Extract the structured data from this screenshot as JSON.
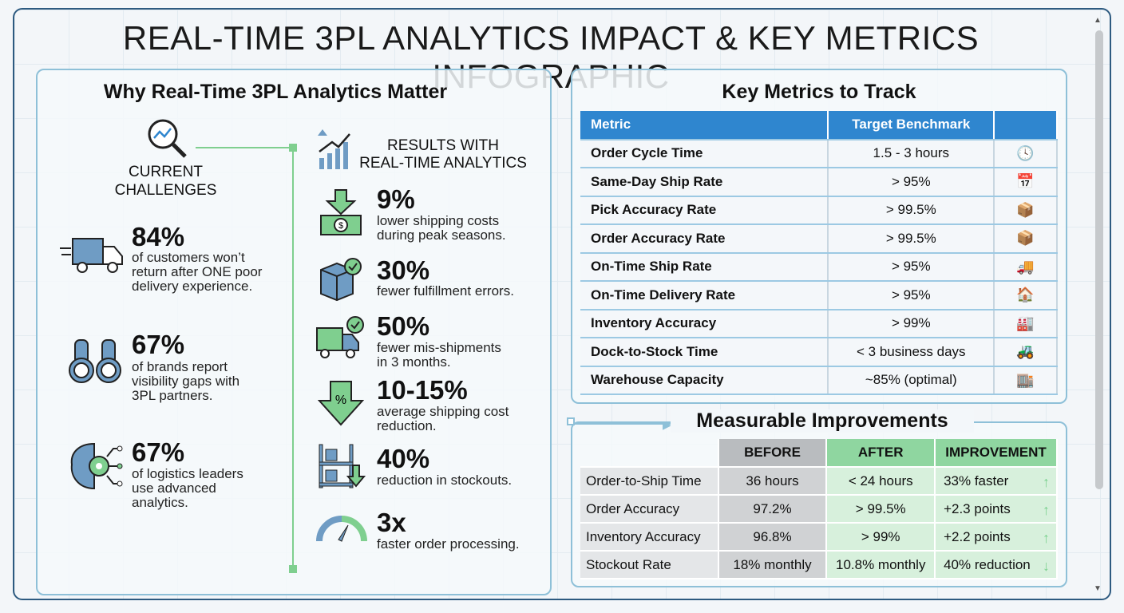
{
  "title": "REAL-TIME 3PL ANALYTICS IMPACT & KEY METRICS INFOGRAPHIC",
  "left": {
    "heading": "Why Real-Time 3PL Analytics Matter",
    "challenges_label": [
      "CURRENT",
      "CHALLENGES"
    ],
    "results_label": [
      "RESULTS WITH",
      "REAL-TIME ANALYTICS"
    ],
    "challenges": [
      {
        "icon": "truck-icon",
        "value": "84%",
        "text": [
          "of customers won’t",
          "return after ONE poor",
          "delivery experience."
        ]
      },
      {
        "icon": "binoculars-icon",
        "value": "67%",
        "text": [
          "of brands report",
          "visibility gaps with",
          "3PL partners."
        ]
      },
      {
        "icon": "brain-gear-icon",
        "value": "67%",
        "text": [
          "of logistics leaders",
          "use advanced",
          "analytics."
        ]
      }
    ],
    "results": [
      {
        "icon": "money-down-icon",
        "value": "9%",
        "text": [
          "lower shipping costs",
          "during peak seasons."
        ]
      },
      {
        "icon": "box-check-icon",
        "value": "30%",
        "text": [
          "fewer fulfillment errors."
        ]
      },
      {
        "icon": "truck-check-icon",
        "value": "50%",
        "text": [
          "fewer mis-shipments",
          "in 3 months."
        ]
      },
      {
        "icon": "percent-arrow-icon",
        "value": "10-15%",
        "text": [
          "average shipping cost",
          "reduction."
        ]
      },
      {
        "icon": "shelf-arrow-icon",
        "value": "40%",
        "text": [
          "reduction in stockouts."
        ]
      },
      {
        "icon": "gauge-icon",
        "value": "3x",
        "text": [
          "faster order processing."
        ]
      }
    ]
  },
  "metrics": {
    "heading": "Key Metrics to Track",
    "headers": [
      "Metric",
      "Target Benchmark",
      ""
    ],
    "rows": [
      {
        "metric": "Order Cycle Time",
        "target": "1.5 - 3 hours",
        "icon": "clock-icon"
      },
      {
        "metric": "Same-Day Ship Rate",
        "target": "> 95%",
        "icon": "calendar-check-icon"
      },
      {
        "metric": "Pick Accuracy Rate",
        "target": "> 99.5%",
        "icon": "hand-box-icon"
      },
      {
        "metric": "Order Accuracy Rate",
        "target": "> 99.5%",
        "icon": "box-check-icon"
      },
      {
        "metric": "On-Time Ship Rate",
        "target": "> 95%",
        "icon": "truck-clock-icon"
      },
      {
        "metric": "On-Time Delivery Rate",
        "target": "> 95%",
        "icon": "house-clock-icon"
      },
      {
        "metric": "Inventory Accuracy",
        "target": "> 99%",
        "icon": "warehouse-check-icon"
      },
      {
        "metric": "Dock-to-Stock Time",
        "target": "< 3 business days",
        "icon": "forklift-icon"
      },
      {
        "metric": "Warehouse Capacity",
        "target": "~85% (optimal)",
        "icon": "warehouse-icon"
      }
    ]
  },
  "improvements": {
    "heading": "Measurable Improvements",
    "headers": [
      "",
      "BEFORE",
      "AFTER",
      "IMPROVEMENT"
    ],
    "rows": [
      {
        "label": "Order-to-Ship Time",
        "before": "36 hours",
        "after": "< 24 hours",
        "improvement": "33% faster",
        "dir": "up"
      },
      {
        "label": "Order Accuracy",
        "before": "97.2%",
        "after": "> 99.5%",
        "improvement": "+2.3 points",
        "dir": "up"
      },
      {
        "label": "Inventory Accuracy",
        "before": "96.8%",
        "after": "> 99%",
        "improvement": "+2.2 points",
        "dir": "up"
      },
      {
        "label": "Stockout Rate",
        "before": "18% monthly",
        "after": "10.8% monthly",
        "improvement": "40% reduction",
        "dir": "down"
      }
    ]
  },
  "colors": {
    "blue": "#2f86cf",
    "green": "#7bd18f",
    "border": "#2d5a80",
    "icon_blue": "#6f9cc4",
    "icon_green": "#7fcf8f"
  }
}
